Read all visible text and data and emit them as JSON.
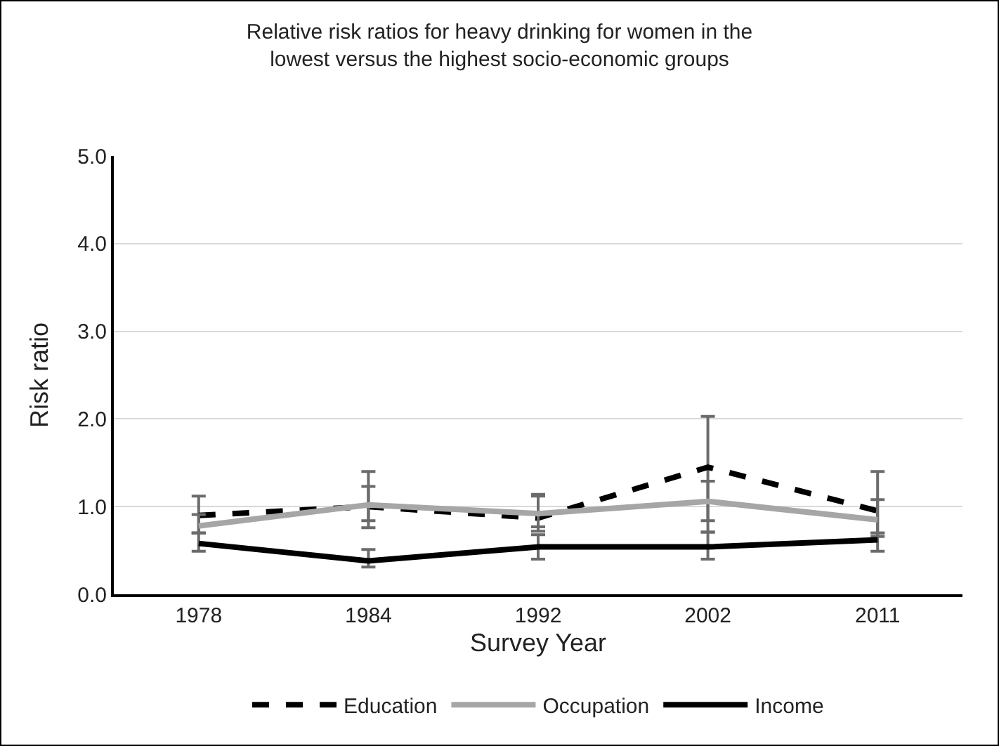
{
  "chart_data": {
    "type": "line",
    "title": "Relative risk ratios for heavy drinking for women in the lowest versus the highest socio-economic groups",
    "xlabel": "Survey Year",
    "ylabel": "Risk ratio",
    "categories": [
      "1978",
      "1984",
      "1992",
      "2002",
      "2011"
    ],
    "series": [
      {
        "name": "Education",
        "color": "#000000",
        "line_style": "dashed",
        "values": [
          0.9,
          1.0,
          0.87,
          1.45,
          0.95
        ],
        "errors": [
          [
            0.7,
            1.12
          ],
          [
            0.76,
            1.23
          ],
          [
            0.72,
            1.12
          ],
          [
            0.71,
            2.03
          ],
          [
            0.7,
            1.4
          ]
        ]
      },
      {
        "name": "Occupation",
        "color": "#a6a6a6",
        "line_style": "solid",
        "values": [
          0.78,
          1.02,
          0.92,
          1.06,
          0.85
        ],
        "errors": [
          [
            0.7,
            0.91
          ],
          [
            0.84,
            1.4
          ],
          [
            0.77,
            1.14
          ],
          [
            0.84,
            1.29
          ],
          [
            0.66,
            1.08
          ]
        ]
      },
      {
        "name": "Income",
        "color": "#000000",
        "line_style": "solid",
        "values": [
          0.58,
          0.38,
          0.54,
          0.54,
          0.62
        ],
        "errors": [
          [
            0.49,
            0.7
          ],
          [
            0.31,
            0.51
          ],
          [
            0.4,
            0.68
          ],
          [
            0.4,
            0.71
          ],
          [
            0.49,
            0.7
          ]
        ]
      }
    ],
    "ylim": [
      0,
      5
    ],
    "yticks": [
      {
        "value": 0,
        "label": "0.0"
      },
      {
        "value": 1,
        "label": "1.0"
      },
      {
        "value": 2,
        "label": "2.0"
      },
      {
        "value": 3,
        "label": "3.0"
      },
      {
        "value": 4,
        "label": "4.0"
      },
      {
        "value": 5,
        "label": "5.0"
      }
    ],
    "grid": "y",
    "legend": "bottom",
    "marker": "none"
  }
}
